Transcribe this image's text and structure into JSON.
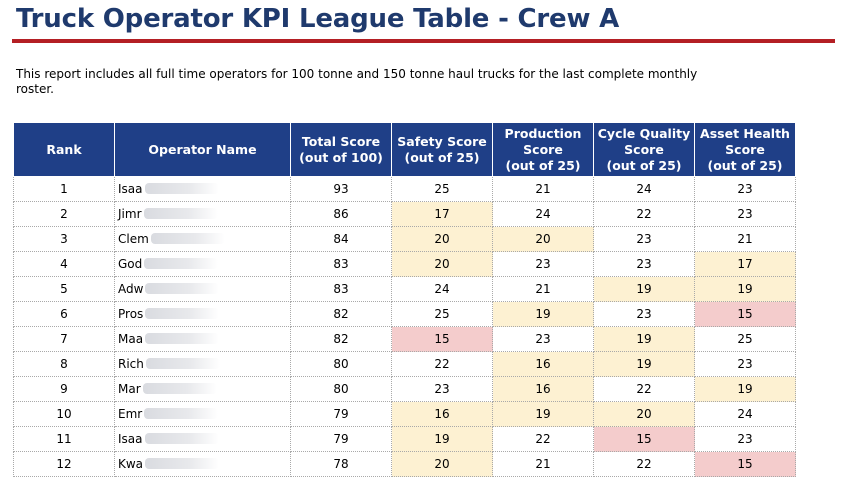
{
  "title": "Truck Operator KPI League Table - Crew A",
  "description": "This report includes all full time operators for 100 tonne and 150 tonne haul trucks for the last complete monthly roster.",
  "colors": {
    "title": "#1f3a6d",
    "rule": "#b41f24",
    "header_bg": "#1f3f87",
    "amber": "#fdf1d2",
    "red": "#f4cccc"
  },
  "table": {
    "headers": [
      [
        "Rank"
      ],
      [
        "Operator Name"
      ],
      [
        "Total Score",
        "(out of 100)"
      ],
      [
        "Safety Score",
        "(out of 25)"
      ],
      [
        "Production",
        "Score",
        "(out of 25)"
      ],
      [
        "Cycle Quality",
        "Score",
        "(out of 25)"
      ],
      [
        "Asset Health",
        "Score",
        "(out of 25)"
      ]
    ],
    "rows": [
      {
        "rank": "1",
        "name": "Isaa",
        "total": "93",
        "safety": "25",
        "production": "21",
        "cycle": "24",
        "asset": "23",
        "hl": [
          "",
          "",
          "",
          ""
        ]
      },
      {
        "rank": "2",
        "name": "Jimr",
        "total": "86",
        "safety": "17",
        "production": "24",
        "cycle": "22",
        "asset": "23",
        "hl": [
          "amber",
          "",
          "",
          ""
        ]
      },
      {
        "rank": "3",
        "name": "Clem",
        "total": "84",
        "safety": "20",
        "production": "20",
        "cycle": "23",
        "asset": "21",
        "hl": [
          "amber",
          "amber",
          "",
          ""
        ]
      },
      {
        "rank": "4",
        "name": "God",
        "total": "83",
        "safety": "20",
        "production": "23",
        "cycle": "23",
        "asset": "17",
        "hl": [
          "amber",
          "",
          "",
          "amber"
        ]
      },
      {
        "rank": "5",
        "name": "Adw",
        "total": "83",
        "safety": "24",
        "production": "21",
        "cycle": "19",
        "asset": "19",
        "hl": [
          "",
          "",
          "amber",
          "amber"
        ]
      },
      {
        "rank": "6",
        "name": "Pros",
        "total": "82",
        "safety": "25",
        "production": "19",
        "cycle": "23",
        "asset": "15",
        "hl": [
          "",
          "amber",
          "",
          "red"
        ]
      },
      {
        "rank": "7",
        "name": "Maa",
        "total": "82",
        "safety": "15",
        "production": "23",
        "cycle": "19",
        "asset": "25",
        "hl": [
          "red",
          "",
          "amber",
          ""
        ]
      },
      {
        "rank": "8",
        "name": "Rich",
        "total": "80",
        "safety": "22",
        "production": "16",
        "cycle": "19",
        "asset": "23",
        "hl": [
          "",
          "amber",
          "amber",
          ""
        ]
      },
      {
        "rank": "9",
        "name": "Mar",
        "total": "80",
        "safety": "23",
        "production": "16",
        "cycle": "22",
        "asset": "19",
        "hl": [
          "",
          "amber",
          "",
          "amber"
        ]
      },
      {
        "rank": "10",
        "name": "Emr",
        "total": "79",
        "safety": "16",
        "production": "19",
        "cycle": "20",
        "asset": "24",
        "hl": [
          "amber",
          "amber",
          "amber",
          ""
        ]
      },
      {
        "rank": "11",
        "name": "Isaa",
        "total": "79",
        "safety": "19",
        "production": "22",
        "cycle": "15",
        "asset": "23",
        "hl": [
          "amber",
          "",
          "red",
          ""
        ]
      },
      {
        "rank": "12",
        "name": "Kwa",
        "total": "78",
        "safety": "20",
        "production": "21",
        "cycle": "22",
        "asset": "15",
        "hl": [
          "amber",
          "",
          "",
          "red"
        ]
      }
    ]
  }
}
